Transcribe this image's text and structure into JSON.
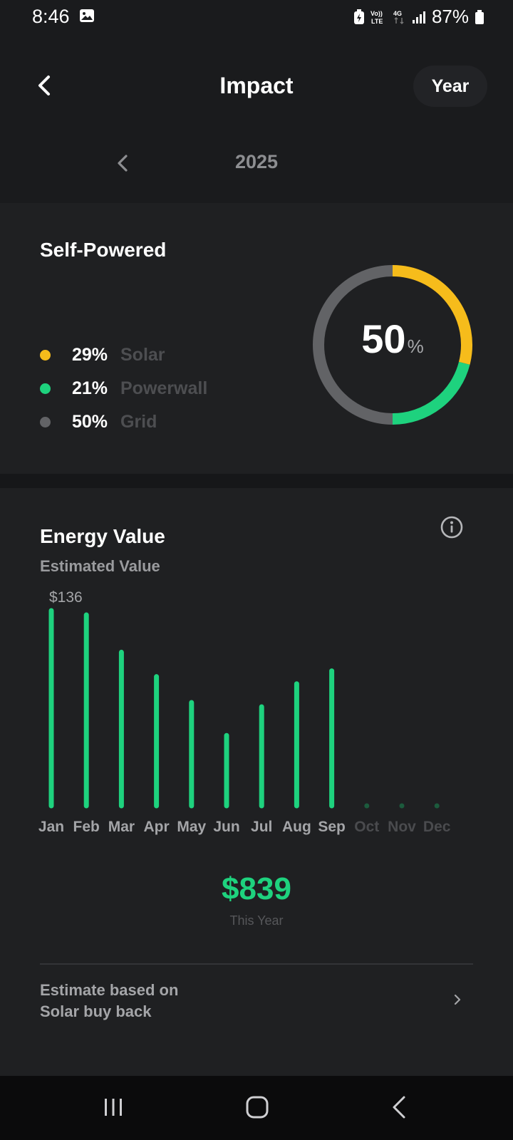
{
  "status_bar": {
    "time": "8:46",
    "battery": "87%",
    "network_top": "Vo)) LTE",
    "network_gen": "4G"
  },
  "header": {
    "title": "Impact",
    "back_icon": "chevron-left-icon",
    "period_button": "Year"
  },
  "year_nav": {
    "year": "2025",
    "prev_icon": "chevron-left-icon"
  },
  "self_powered": {
    "title": "Self-Powered",
    "total_value": "50",
    "total_unit": "%",
    "legend": [
      {
        "pct": "29%",
        "name": "Solar",
        "color": "#f6bc1b"
      },
      {
        "pct": "21%",
        "name": "Powerwall",
        "color": "#1ed27e"
      },
      {
        "pct": "50%",
        "name": "Grid",
        "color": "#626366"
      }
    ]
  },
  "energy_value": {
    "title": "Energy Value",
    "subtitle": "Estimated Value",
    "info_icon": "info-icon",
    "total": "$839",
    "total_label": "This Year",
    "estimate_text_line1": "Estimate based on",
    "estimate_text_line2": "Solar buy back",
    "estimate_icon": "chevron-right-icon"
  },
  "chart_data": {
    "type": "bar",
    "categories": [
      "Jan",
      "Feb",
      "Mar",
      "Apr",
      "May",
      "Jun",
      "Jul",
      "Aug",
      "Sep",
      "Oct",
      "Nov",
      "Dec"
    ],
    "values": [
      136,
      133,
      107,
      90,
      72,
      49,
      69,
      85,
      94,
      0,
      0,
      0
    ],
    "max_label": "$136",
    "bar_color": "#1ed27e",
    "empty_color": "#1c5b3d",
    "ylim": [
      0,
      136
    ]
  },
  "colors": {
    "background": "#1a1b1d",
    "card": "#1f2022",
    "accent_green": "#1ed27e",
    "solar_yellow": "#f6bc1b",
    "grid_gray": "#626366"
  },
  "nav_bar": {
    "recents_icon": "recents-icon",
    "home_icon": "home-icon",
    "back_icon": "back-icon"
  }
}
